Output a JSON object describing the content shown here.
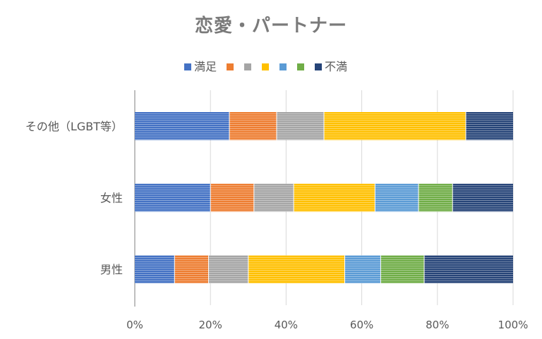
{
  "chart_data": {
    "type": "bar",
    "orientation": "horizontal",
    "stacked": "percent",
    "title": "恋愛・パートナー",
    "categories": [
      "男性",
      "女性",
      "その他（LGBT等）"
    ],
    "series": [
      {
        "name": "満足",
        "color": "#4472c4",
        "values": [
          10.5,
          20,
          25
        ]
      },
      {
        "name": "",
        "color": "#ed7d31",
        "values": [
          9,
          11.5,
          12.5
        ]
      },
      {
        "name": "",
        "color": "#a5a5a5",
        "values": [
          10.5,
          10.5,
          12.5
        ]
      },
      {
        "name": "",
        "color": "#ffc000",
        "values": [
          25.5,
          21.5,
          37.5
        ]
      },
      {
        "name": "",
        "color": "#5b9bd5",
        "values": [
          9.5,
          11.5,
          0
        ]
      },
      {
        "name": "",
        "color": "#70ad47",
        "values": [
          11.5,
          9,
          0
        ]
      },
      {
        "name": "不満",
        "color": "#264478",
        "values": [
          23.5,
          16,
          12.5
        ]
      }
    ],
    "x_ticks": [
      "0%",
      "20%",
      "40%",
      "60%",
      "80%",
      "100%"
    ],
    "xlim": [
      0,
      100
    ],
    "grid": true,
    "legend_position": "top"
  }
}
